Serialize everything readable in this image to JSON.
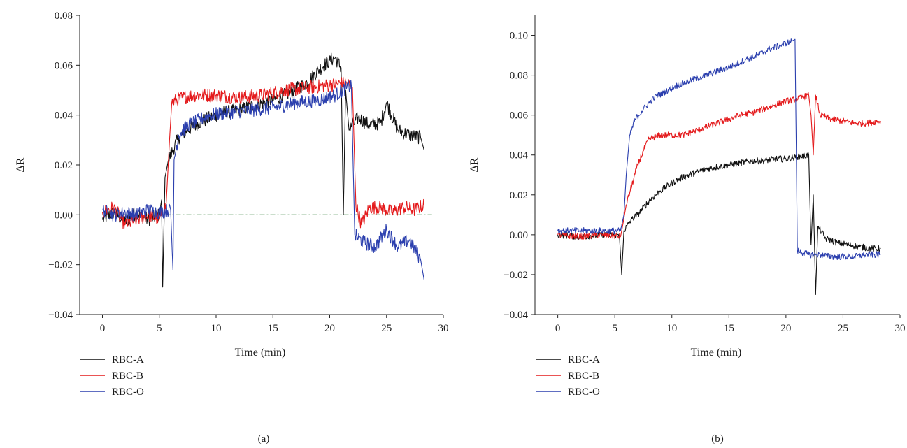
{
  "chart_data": [
    {
      "type": "line",
      "panel_label": "(a)",
      "xlabel": "Time (min)",
      "ylabel": "ΔR",
      "xlim": [
        -2,
        30
      ],
      "ylim": [
        -0.04,
        0.08
      ],
      "xticks": [
        0,
        5,
        10,
        15,
        20,
        25,
        30
      ],
      "yticks": [
        -0.04,
        -0.02,
        0.0,
        0.02,
        0.04,
        0.06,
        0.08
      ],
      "ytick_labels": [
        "−0.04",
        "−0.02",
        "0.00",
        "0.02",
        "0.04",
        "0.06",
        "0.08"
      ],
      "grid": false,
      "legend": "below",
      "reference_line": {
        "y": 0.0,
        "x": [
          0,
          29
        ],
        "color": "#2e7d32",
        "style": "dash-dot"
      },
      "series": [
        {
          "name": "RBC-A",
          "color": "#111111",
          "points": [
            [
              0,
              -0.002
            ],
            [
              1,
              0.001
            ],
            [
              2,
              -0.003
            ],
            [
              3,
              0.001
            ],
            [
              4,
              -0.002
            ],
            [
              5,
              0.0
            ],
            [
              5.2,
              0.006
            ],
            [
              5.3,
              -0.029
            ],
            [
              5.5,
              0.015
            ],
            [
              5.8,
              0.022
            ],
            [
              6.2,
              0.026
            ],
            [
              6.7,
              0.031
            ],
            [
              7.5,
              0.034
            ],
            [
              8.5,
              0.037
            ],
            [
              9.5,
              0.039
            ],
            [
              10.5,
              0.041
            ],
            [
              12,
              0.042
            ],
            [
              13.5,
              0.044
            ],
            [
              15,
              0.046
            ],
            [
              16.5,
              0.049
            ],
            [
              18,
              0.053
            ],
            [
              19,
              0.058
            ],
            [
              20,
              0.062
            ],
            [
              20.5,
              0.063
            ],
            [
              21,
              0.059
            ],
            [
              21.2,
              0.0
            ],
            [
              21.4,
              0.05
            ],
            [
              21.7,
              0.034
            ],
            [
              22.5,
              0.039
            ],
            [
              23.5,
              0.036
            ],
            [
              24.5,
              0.037
            ],
            [
              25,
              0.045
            ],
            [
              26,
              0.034
            ],
            [
              27,
              0.032
            ],
            [
              28,
              0.031
            ],
            [
              28.3,
              0.026
            ]
          ]
        },
        {
          "name": "RBC-B",
          "color": "#e41a1c",
          "points": [
            [
              0,
              0.001
            ],
            [
              1,
              0.003
            ],
            [
              2,
              -0.004
            ],
            [
              3,
              -0.002
            ],
            [
              4,
              0.0
            ],
            [
              5,
              -0.002
            ],
            [
              5.6,
              0.004
            ],
            [
              5.9,
              0.03
            ],
            [
              6.1,
              0.045
            ],
            [
              7,
              0.047
            ],
            [
              8,
              0.048
            ],
            [
              10,
              0.048
            ],
            [
              12,
              0.047
            ],
            [
              14,
              0.048
            ],
            [
              16,
              0.05
            ],
            [
              18,
              0.051
            ],
            [
              20,
              0.052
            ],
            [
              21.5,
              0.053
            ],
            [
              22,
              0.051
            ],
            [
              22.3,
              0.004
            ],
            [
              22.8,
              -0.004
            ],
            [
              23.5,
              0.003
            ],
            [
              24.5,
              0.003
            ],
            [
              25.5,
              0.001
            ],
            [
              26.5,
              0.003
            ],
            [
              27.5,
              0.002
            ],
            [
              28.3,
              0.004
            ]
          ]
        },
        {
          "name": "RBC-O",
          "color": "#2b3fae",
          "points": [
            [
              0,
              0.002
            ],
            [
              1,
              0.0
            ],
            [
              2,
              0.001
            ],
            [
              3,
              0.0
            ],
            [
              4,
              0.002
            ],
            [
              5,
              0.001
            ],
            [
              6,
              0.002
            ],
            [
              6.2,
              -0.022
            ],
            [
              6.3,
              0.022
            ],
            [
              6.7,
              0.032
            ],
            [
              7.5,
              0.036
            ],
            [
              8.5,
              0.038
            ],
            [
              9.5,
              0.04
            ],
            [
              11,
              0.041
            ],
            [
              13,
              0.042
            ],
            [
              15,
              0.043
            ],
            [
              17,
              0.045
            ],
            [
              19,
              0.046
            ],
            [
              20.5,
              0.048
            ],
            [
              21.5,
              0.051
            ],
            [
              21.9,
              0.052
            ],
            [
              22.2,
              -0.008
            ],
            [
              23,
              -0.011
            ],
            [
              24,
              -0.013
            ],
            [
              25,
              -0.006
            ],
            [
              26,
              -0.013
            ],
            [
              27,
              -0.01
            ],
            [
              28,
              -0.018
            ],
            [
              28.3,
              -0.026
            ]
          ]
        }
      ]
    },
    {
      "type": "line",
      "panel_label": "(b)",
      "xlabel": "Time (min)",
      "ylabel": "ΔR",
      "xlim": [
        -2,
        30
      ],
      "ylim": [
        -0.04,
        0.11
      ],
      "xticks": [
        0,
        5,
        10,
        15,
        20,
        25,
        30
      ],
      "yticks": [
        -0.04,
        -0.02,
        0.0,
        0.02,
        0.04,
        0.06,
        0.08,
        0.1
      ],
      "ytick_labels": [
        "−0.04",
        "−0.02",
        "0.00",
        "0.02",
        "0.04",
        "0.06",
        "0.08",
        "0.10"
      ],
      "grid": false,
      "legend": "below",
      "series": [
        {
          "name": "RBC-A",
          "color": "#111111",
          "points": [
            [
              0,
              0.0
            ],
            [
              2,
              -0.001
            ],
            [
              4,
              0.0
            ],
            [
              5.4,
              0.0
            ],
            [
              5.6,
              -0.02
            ],
            [
              5.8,
              0.002
            ],
            [
              6.5,
              0.008
            ],
            [
              7,
              0.01
            ],
            [
              8,
              0.017
            ],
            [
              9,
              0.022
            ],
            [
              10,
              0.026
            ],
            [
              11,
              0.029
            ],
            [
              12,
              0.031
            ],
            [
              13,
              0.033
            ],
            [
              14,
              0.034
            ],
            [
              15,
              0.035
            ],
            [
              16,
              0.036
            ],
            [
              17,
              0.037
            ],
            [
              18,
              0.037
            ],
            [
              19,
              0.038
            ],
            [
              20,
              0.038
            ],
            [
              21,
              0.039
            ],
            [
              22,
              0.04
            ],
            [
              22.2,
              -0.005
            ],
            [
              22.4,
              0.02
            ],
            [
              22.6,
              -0.03
            ],
            [
              22.8,
              0.004
            ],
            [
              23.5,
              -0.002
            ],
            [
              24.5,
              -0.004
            ],
            [
              25.5,
              -0.005
            ],
            [
              26.5,
              -0.006
            ],
            [
              27.5,
              -0.007
            ],
            [
              28.3,
              -0.007
            ]
          ]
        },
        {
          "name": "RBC-B",
          "color": "#e41a1c",
          "points": [
            [
              0,
              0.0
            ],
            [
              2,
              -0.001
            ],
            [
              4,
              0.0
            ],
            [
              5.5,
              -0.001
            ],
            [
              5.7,
              0.005
            ],
            [
              6,
              0.015
            ],
            [
              6.5,
              0.025
            ],
            [
              7,
              0.035
            ],
            [
              7.5,
              0.042
            ],
            [
              8,
              0.048
            ],
            [
              9,
              0.05
            ],
            [
              10,
              0.05
            ],
            [
              11,
              0.05
            ],
            [
              12,
              0.052
            ],
            [
              13,
              0.054
            ],
            [
              14,
              0.056
            ],
            [
              15,
              0.058
            ],
            [
              16,
              0.06
            ],
            [
              17,
              0.061
            ],
            [
              18,
              0.063
            ],
            [
              19,
              0.065
            ],
            [
              20,
              0.067
            ],
            [
              21,
              0.068
            ],
            [
              22,
              0.07
            ],
            [
              22.2,
              0.06
            ],
            [
              22.4,
              0.04
            ],
            [
              22.6,
              0.07
            ],
            [
              23,
              0.06
            ],
            [
              24,
              0.058
            ],
            [
              25,
              0.057
            ],
            [
              26,
              0.056
            ],
            [
              27,
              0.056
            ],
            [
              28.3,
              0.057
            ]
          ]
        },
        {
          "name": "RBC-O",
          "color": "#2b3fae",
          "points": [
            [
              0,
              0.002
            ],
            [
              2,
              0.002
            ],
            [
              4,
              0.002
            ],
            [
              5.5,
              0.002
            ],
            [
              5.8,
              0.01
            ],
            [
              6,
              0.03
            ],
            [
              6.3,
              0.05
            ],
            [
              6.8,
              0.058
            ],
            [
              7.5,
              0.063
            ],
            [
              8.5,
              0.069
            ],
            [
              9.5,
              0.072
            ],
            [
              10.5,
              0.075
            ],
            [
              11.5,
              0.077
            ],
            [
              12.5,
              0.079
            ],
            [
              13.5,
              0.081
            ],
            [
              14.5,
              0.083
            ],
            [
              15.5,
              0.085
            ],
            [
              16.5,
              0.088
            ],
            [
              17.5,
              0.09
            ],
            [
              18.5,
              0.093
            ],
            [
              19.5,
              0.095
            ],
            [
              20.5,
              0.097
            ],
            [
              20.8,
              0.098
            ],
            [
              21,
              -0.008
            ],
            [
              22,
              -0.01
            ],
            [
              23,
              -0.01
            ],
            [
              24,
              -0.011
            ],
            [
              25,
              -0.011
            ],
            [
              26,
              -0.011
            ],
            [
              27,
              -0.01
            ],
            [
              28.3,
              -0.01
            ]
          ]
        }
      ]
    }
  ]
}
